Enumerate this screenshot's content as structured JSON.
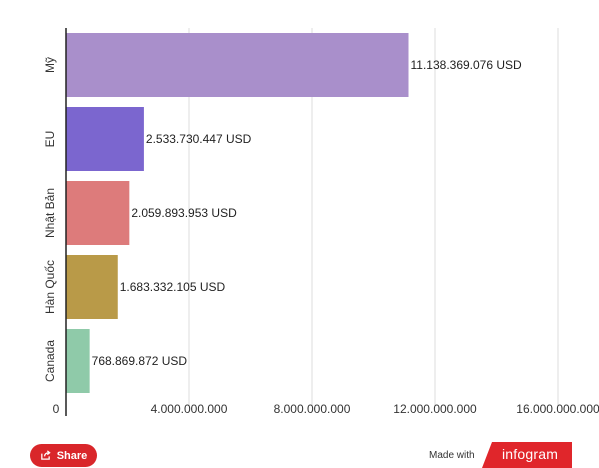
{
  "chart_data": {
    "type": "bar",
    "orientation": "horizontal",
    "categories": [
      "Mỹ",
      "EU",
      "Nhật Bản",
      "Hàn Quốc",
      "Canada"
    ],
    "values": [
      11138369076,
      2533730447,
      2059893953,
      1683332105,
      768869872
    ],
    "value_labels": [
      "11.138.369.076 USD",
      "2.533.730.447 USD",
      "2.059.893.953 USD",
      "1.683.332.105 USD",
      "768.869.872 USD"
    ],
    "colors": [
      "#a98fcb",
      "#7b66cf",
      "#dd7b7b",
      "#b99a48",
      "#8fcaa9"
    ],
    "xlim": [
      0,
      16000000000
    ],
    "x_ticks": [
      0,
      4000000000,
      8000000000,
      12000000000,
      16000000000
    ],
    "x_tick_labels": [
      "0",
      "4.000.000.000",
      "8.000.000.000",
      "12.000.000.000",
      "16.000.000.000"
    ],
    "grid": true,
    "legend": "none"
  },
  "footer": {
    "share_label": "Share",
    "made_with": "Made with",
    "brand": "infogram",
    "brand_color": "#e0262b"
  }
}
